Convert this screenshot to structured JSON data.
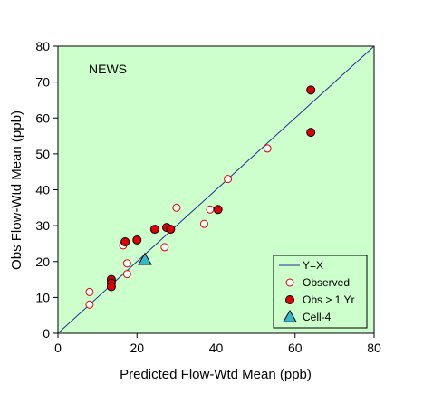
{
  "chart_data": {
    "type": "scatter",
    "plot_label": "NEWS",
    "xlabel": "Predicted Flow-Wtd Mean  (ppb)",
    "ylabel": "Obs Flow-Wtd Mean  (ppb)",
    "xlim": [
      0,
      80
    ],
    "ylim": [
      0,
      80
    ],
    "x_ticks": [
      0,
      20,
      40,
      60,
      80
    ],
    "y_ticks": [
      0,
      10,
      20,
      30,
      40,
      50,
      60,
      70,
      80
    ],
    "grid": false,
    "legend_position": "bottom-right",
    "colors": {
      "plot_background": "#ccffcc",
      "line": "#1f2f8f",
      "marker_red": "#e00000",
      "triangle_fill": "#33bbcc"
    },
    "reference_line": {
      "name": "Y=X",
      "points": [
        [
          0,
          0
        ],
        [
          80,
          80
        ]
      ]
    },
    "series": [
      {
        "name": "Observed",
        "marker": "open-circle",
        "points": [
          [
            8,
            11.5
          ],
          [
            8,
            8
          ],
          [
            16.5,
            24.5
          ],
          [
            17.5,
            19.5
          ],
          [
            17.5,
            16.5
          ],
          [
            27,
            24
          ],
          [
            30,
            35
          ],
          [
            37,
            30.5
          ],
          [
            38.5,
            34.5
          ],
          [
            43,
            43
          ],
          [
            53,
            51.5
          ]
        ]
      },
      {
        "name": "Obs > 1 Yr",
        "marker": "filled-circle",
        "points": [
          [
            13.5,
            15
          ],
          [
            13.5,
            14
          ],
          [
            13.5,
            13
          ],
          [
            17,
            25.5
          ],
          [
            20,
            26
          ],
          [
            24.5,
            29
          ],
          [
            27.5,
            29.5
          ],
          [
            28.5,
            29
          ],
          [
            40.5,
            34.5
          ],
          [
            64,
            67.8
          ],
          [
            64,
            56
          ]
        ]
      },
      {
        "name": "Cell-4",
        "marker": "filled-triangle",
        "points": [
          [
            22,
            20.5
          ]
        ]
      }
    ],
    "legend_items": [
      "Y=X",
      "Observed",
      "Obs > 1 Yr",
      "Cell-4"
    ]
  }
}
